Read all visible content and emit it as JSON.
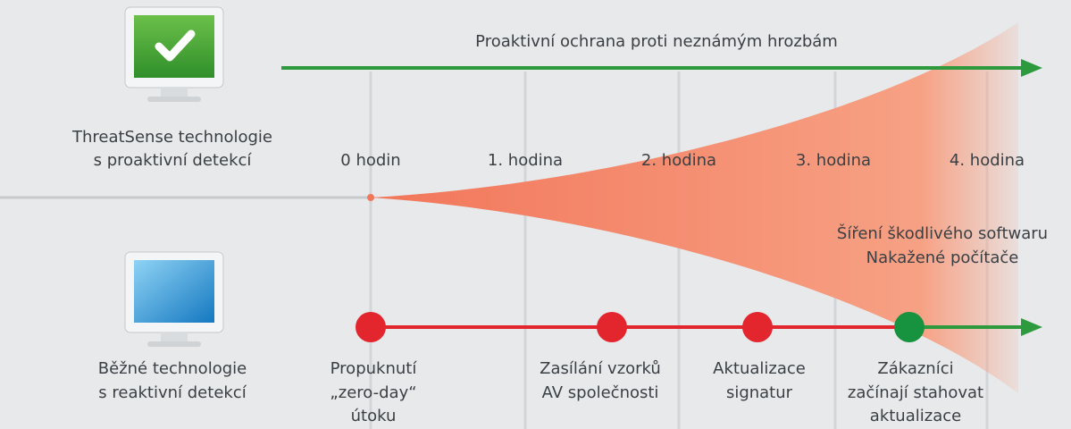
{
  "top_arrow": {
    "label": "Proaktivní ochrana proti neznámým hrozbám"
  },
  "proactive": {
    "lines": [
      "ThreatSense technologie",
      "s proaktivní detekcí"
    ]
  },
  "hours": [
    "0 hodin",
    "1. hodina",
    "2. hodina",
    "3. hodina",
    "4. hodina"
  ],
  "spread": {
    "lines": [
      "Šíření škodlivého softwaru",
      "Nakažené počítače"
    ]
  },
  "reactive": {
    "lines": [
      "Běžné technologie",
      "s reaktivní detekcí"
    ]
  },
  "milestones": [
    {
      "lines": [
        "Propuknutí",
        "„zero-day“",
        "útoku"
      ]
    },
    {
      "lines": [
        "Zasílání vzorků",
        "AV společnosti"
      ]
    },
    {
      "lines": [
        "Aktualizace",
        "signatur"
      ]
    },
    {
      "lines": [
        "Zákazníci",
        "začínají stahovat",
        "aktualizace"
      ]
    }
  ]
}
